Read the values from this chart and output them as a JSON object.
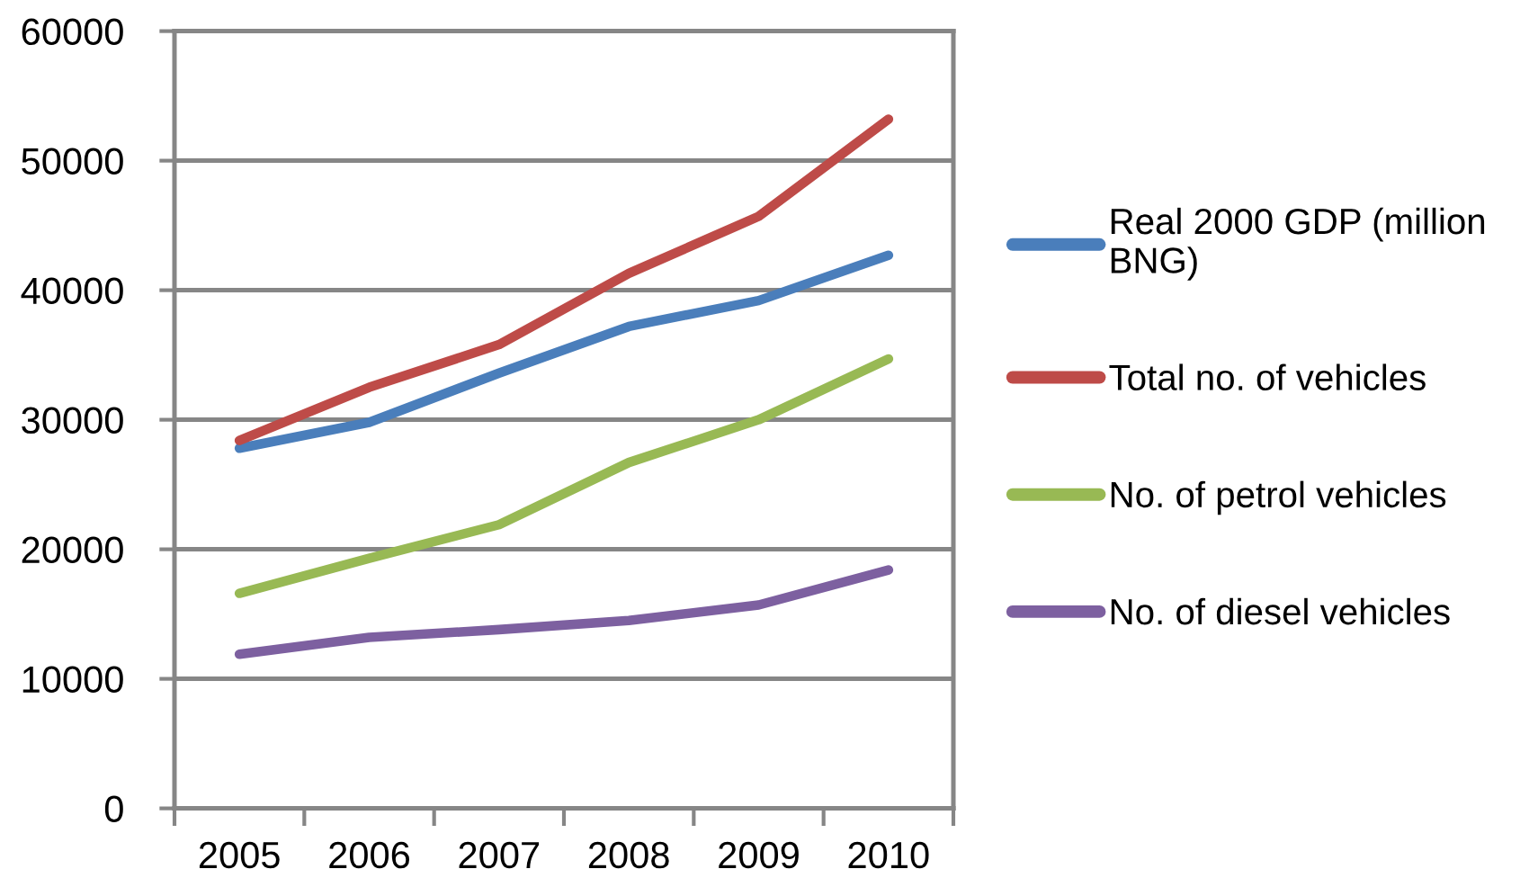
{
  "chart_data": {
    "type": "line",
    "categories": [
      "2005",
      "2006",
      "2007",
      "2008",
      "2009",
      "2010"
    ],
    "series": [
      {
        "name": "Real 2000 GDP (million BNG)",
        "color": "#4a7ebb",
        "values": [
          27800,
          29800,
          33600,
          37200,
          39200,
          42700
        ]
      },
      {
        "name": "Total no. of vehicles",
        "color": "#be4b48",
        "values": [
          28400,
          32500,
          35800,
          41300,
          45700,
          53200
        ]
      },
      {
        "name": "No. of petrol vehicles",
        "color": "#98b954",
        "values": [
          16600,
          19300,
          21900,
          26700,
          30000,
          34700
        ]
      },
      {
        "name": "No. of diesel vehicles",
        "color": "#7d60a0",
        "values": [
          11900,
          13200,
          13800,
          14500,
          15700,
          18400
        ]
      }
    ],
    "ylim": [
      0,
      60000
    ],
    "yticks": [
      0,
      10000,
      20000,
      30000,
      40000,
      50000,
      60000
    ],
    "grid": "y",
    "legend": "right",
    "line_style": "solid"
  }
}
